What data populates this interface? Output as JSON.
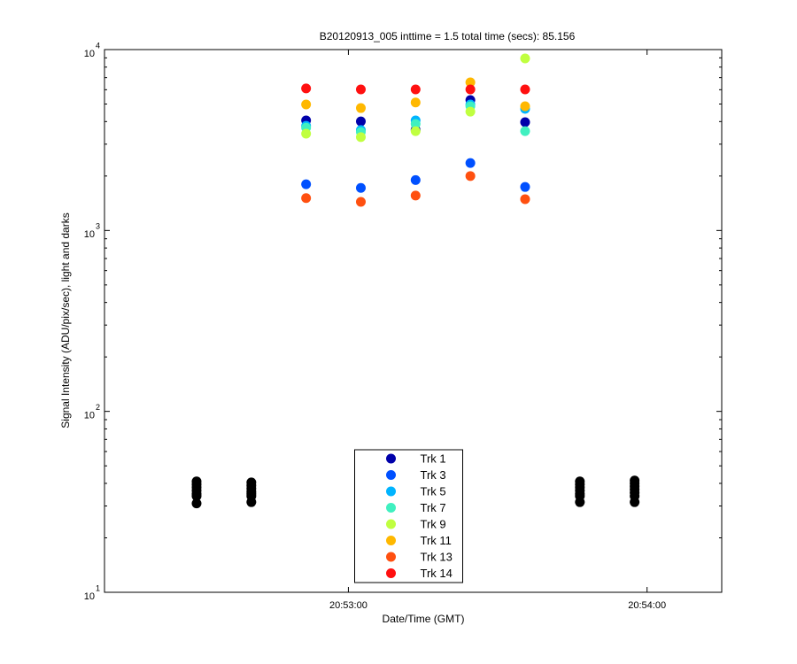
{
  "chart_data": {
    "type": "scatter",
    "title": "B20120913_005 inttime = 1.5 total time (secs): 85.156",
    "x_label": "Date/Time (GMT)",
    "y_label": "Signal Intensity (ADU/pix/sec), light and darks",
    "log_y": true,
    "xlim": [
      75131,
      75255
    ],
    "xticks": [
      {
        "value": 75180,
        "label": "20:53:00"
      },
      {
        "value": 75240,
        "label": "20:54:00"
      }
    ],
    "ylim": [
      10,
      10000
    ],
    "yticks": [
      {
        "value": 10,
        "label": "10",
        "exponent": "1"
      },
      {
        "value": 100,
        "label": "10",
        "exponent": "2"
      },
      {
        "value": 1000,
        "label": "10",
        "exponent": "3"
      },
      {
        "value": 10000,
        "label": "10",
        "exponent": "4"
      }
    ],
    "x": [
      75171.5,
      75182.5,
      75193.5,
      75204.5,
      75215.5
    ],
    "series": [
      {
        "name": "Trk 1",
        "color": "#0000aa",
        "values": [
          4060,
          4010,
          3600,
          5260,
          3970
        ]
      },
      {
        "name": "Trk 3",
        "color": "#0050ff",
        "values": [
          1800,
          1720,
          1900,
          2360,
          1740
        ]
      },
      {
        "name": "Trk 5",
        "color": "#00b4ff",
        "values": [
          3790,
          3590,
          4060,
          4970,
          4700
        ]
      },
      {
        "name": "Trk 7",
        "color": "#40f0c0",
        "values": [
          3700,
          3500,
          3880,
          4860,
          3540
        ]
      },
      {
        "name": "Trk 9",
        "color": "#c0ff40",
        "values": [
          3430,
          3280,
          3540,
          4540,
          8930
        ]
      },
      {
        "name": "Trk 11",
        "color": "#ffb800",
        "values": [
          4970,
          4750,
          5100,
          6590,
          4860
        ]
      },
      {
        "name": "Trk 13",
        "color": "#ff5010",
        "values": [
          1510,
          1440,
          1560,
          2000,
          1490
        ]
      },
      {
        "name": "Trk 14",
        "color": "#ff1010",
        "values": [
          6100,
          6020,
          6020,
          6020,
          6020
        ]
      }
    ],
    "darks": {
      "color": "#000000",
      "x": [
        75149.5,
        75149.5,
        75149.5,
        75149.5,
        75149.5,
        75149.5,
        75149.5,
        75160.5,
        75160.5,
        75160.5,
        75160.5,
        75160.5,
        75160.5,
        75160.5,
        75226.5,
        75226.5,
        75226.5,
        75226.5,
        75226.5,
        75226.5,
        75226.5,
        75237.5,
        75237.5,
        75237.5,
        75237.5,
        75237.5,
        75237.5,
        75237.5
      ],
      "values": [
        41,
        39.5,
        38,
        36.5,
        35,
        34,
        31,
        40.5,
        39,
        37.5,
        36,
        35,
        34,
        31.5,
        41,
        39.5,
        38,
        36.5,
        35,
        34,
        31.5,
        41.5,
        40,
        38.5,
        37,
        35.5,
        34,
        31.5
      ]
    },
    "legend": "lower center"
  }
}
